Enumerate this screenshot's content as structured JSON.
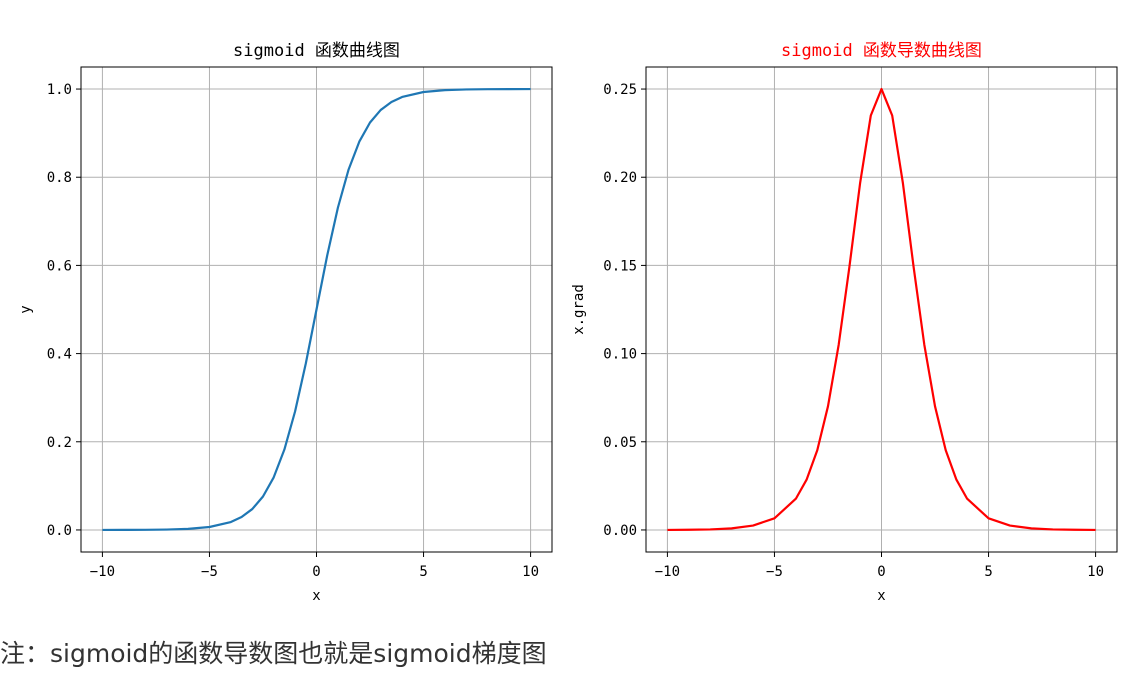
{
  "caption": "注：sigmoid的函数导数图也就是sigmoid梯度图",
  "chart_data": [
    {
      "type": "line",
      "title": "sigmoid 函数曲线图",
      "title_color": "#000000",
      "xlabel": "x",
      "ylabel": "y",
      "xlim": [
        -11,
        11
      ],
      "ylim": [
        -0.05,
        1.05
      ],
      "xticks": [
        -10,
        -5,
        0,
        5,
        10
      ],
      "xtick_labels": [
        "−10",
        "−5",
        "0",
        "5",
        "10"
      ],
      "yticks": [
        0.0,
        0.2,
        0.4,
        0.6,
        0.8,
        1.0
      ],
      "ytick_labels": [
        "0.0",
        "0.2",
        "0.4",
        "0.6",
        "0.8",
        "1.0"
      ],
      "grid": true,
      "series": [
        {
          "color": "#1f77b4",
          "x": [
            -10,
            -9,
            -8,
            -7,
            -6,
            -5,
            -4,
            -3.5,
            -3,
            -2.5,
            -2,
            -1.5,
            -1,
            -0.5,
            0,
            0.5,
            1,
            1.5,
            2,
            2.5,
            3,
            3.5,
            4,
            5,
            6,
            7,
            8,
            9,
            10
          ],
          "y": [
            0.0,
            0.0001,
            0.0003,
            0.0009,
            0.0025,
            0.0067,
            0.018,
            0.0293,
            0.0474,
            0.0759,
            0.1192,
            0.1824,
            0.2689,
            0.3775,
            0.5,
            0.6225,
            0.7311,
            0.8176,
            0.8808,
            0.9241,
            0.9526,
            0.9707,
            0.982,
            0.9933,
            0.9975,
            0.9991,
            0.9997,
            0.9999,
            1.0
          ]
        }
      ]
    },
    {
      "type": "line",
      "title": "sigmoid 函数导数曲线图",
      "title_color": "#ff0000",
      "xlabel": "x",
      "ylabel": "x.grad",
      "xlim": [
        -11,
        11
      ],
      "ylim": [
        -0.0125,
        0.2625
      ],
      "xticks": [
        -10,
        -5,
        0,
        5,
        10
      ],
      "xtick_labels": [
        "−10",
        "−5",
        "0",
        "5",
        "10"
      ],
      "yticks": [
        0.0,
        0.05,
        0.1,
        0.15,
        0.2,
        0.25
      ],
      "ytick_labels": [
        "0.00",
        "0.05",
        "0.10",
        "0.15",
        "0.20",
        "0.25"
      ],
      "grid": true,
      "series": [
        {
          "color": "#ff0000",
          "x": [
            -10,
            -9,
            -8,
            -7,
            -6,
            -5,
            -4,
            -3.5,
            -3,
            -2.5,
            -2,
            -1.5,
            -1,
            -0.5,
            0,
            0.5,
            1,
            1.5,
            2,
            2.5,
            3,
            3.5,
            4,
            5,
            6,
            7,
            8,
            9,
            10
          ],
          "y": [
            0.0,
            0.0001,
            0.0003,
            0.0009,
            0.0025,
            0.0066,
            0.0177,
            0.0285,
            0.0452,
            0.0701,
            0.105,
            0.1491,
            0.1966,
            0.235,
            0.25,
            0.235,
            0.1966,
            0.1491,
            0.105,
            0.0701,
            0.0452,
            0.0285,
            0.0177,
            0.0066,
            0.0025,
            0.0009,
            0.0003,
            0.0001,
            0.0
          ]
        }
      ]
    }
  ]
}
